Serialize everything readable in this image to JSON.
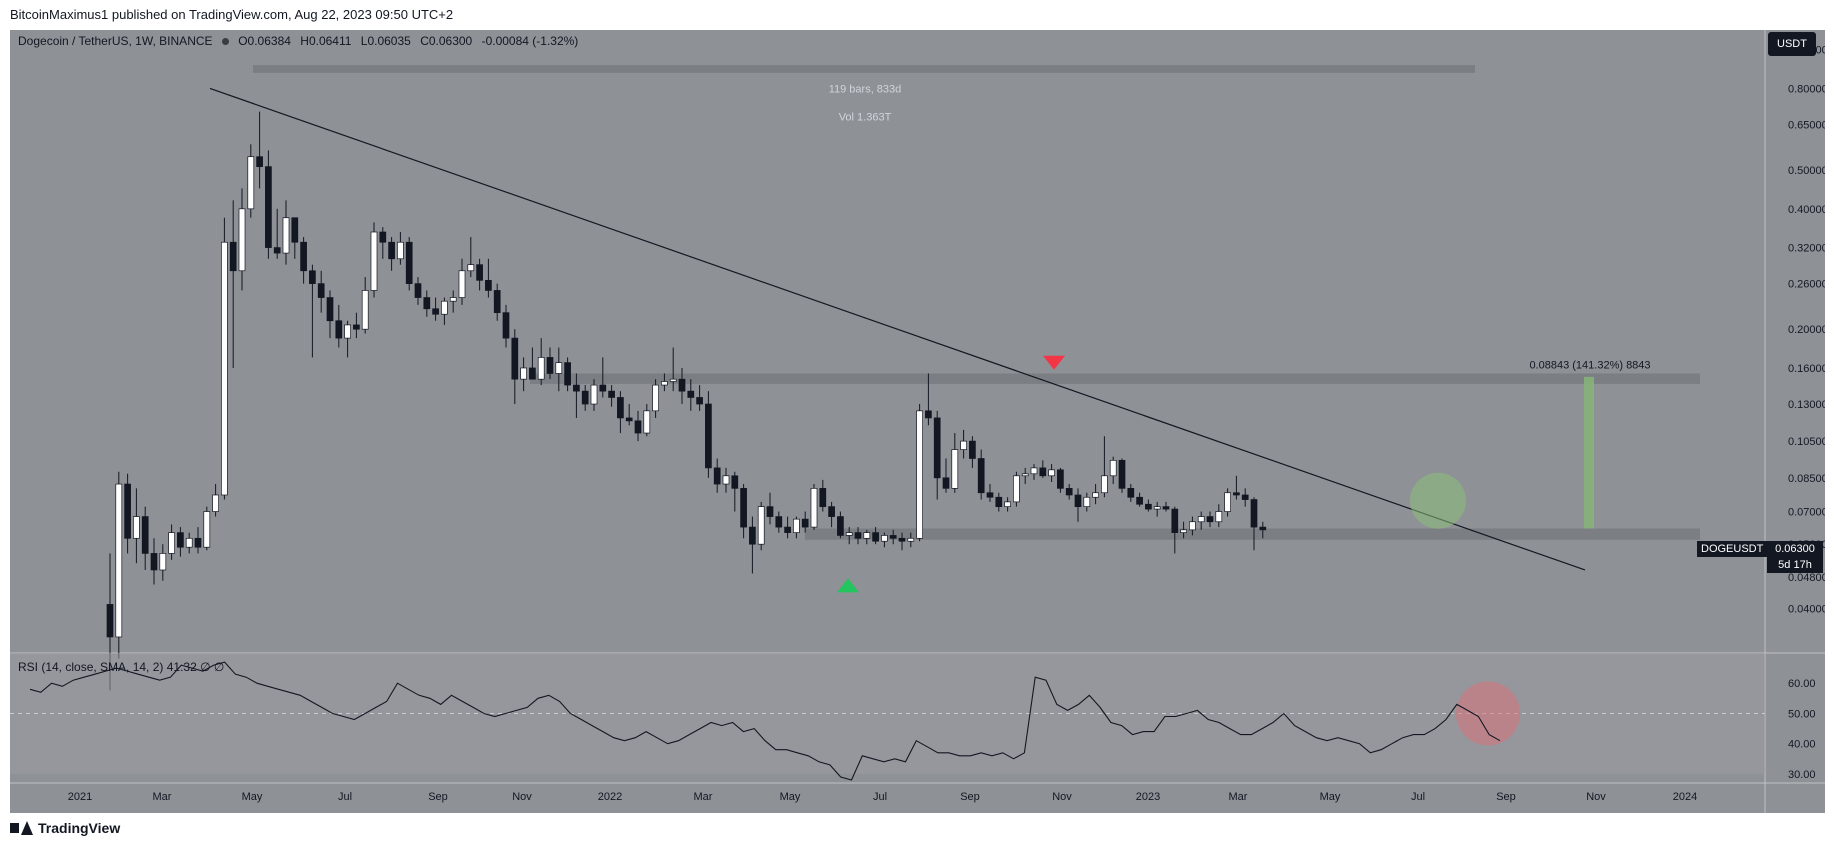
{
  "header": {
    "publisher": "BitcoinMaximus1 published on TradingView.com, Aug 22, 2023 09:50 UTC+2"
  },
  "symbol": {
    "name": "Dogecoin / TetherUS, 1W, BINANCE",
    "open": "O0.06384",
    "high": "H0.06411",
    "low": "L0.06035",
    "close": "C0.06300",
    "change": "-0.00084 (-1.32%)",
    "currency_button": "USDT"
  },
  "price_tag": {
    "ticker": "DOGEUSDT",
    "value": "0.06300",
    "countdown": "5d 17h"
  },
  "rsi": {
    "label": "RSI (14, close, SMA, 14, 2)",
    "value": "41.32",
    "extra": "∅  ∅"
  },
  "footer": {
    "brand": "TradingView"
  },
  "chart_data": {
    "type": "candlestick",
    "scale": "log",
    "ylim": [
      0.031,
      1.12
    ],
    "y_ticks": [
      "1.00000",
      "0.80000",
      "0.65000",
      "0.50000",
      "0.40000",
      "0.32000",
      "0.26000",
      "0.20000",
      "0.16000",
      "0.13000",
      "0.10500",
      "0.08500",
      "0.07000",
      "0.05800",
      "0.04800",
      "0.04000"
    ],
    "x_ticks": [
      "2021",
      "Mar",
      "May",
      "Jul",
      "Sep",
      "Nov",
      "2022",
      "Mar",
      "May",
      "Jul",
      "Sep",
      "Nov",
      "2023",
      "Mar",
      "May",
      "Jul",
      "Sep",
      "Nov",
      "2024"
    ],
    "candles": [
      {
        "o": 0.041,
        "h": 0.055,
        "l": 0.025,
        "c": 0.034
      },
      {
        "o": 0.034,
        "h": 0.088,
        "l": 0.03,
        "c": 0.082
      },
      {
        "o": 0.082,
        "h": 0.087,
        "l": 0.055,
        "c": 0.06
      },
      {
        "o": 0.06,
        "h": 0.08,
        "l": 0.052,
        "c": 0.068
      },
      {
        "o": 0.068,
        "h": 0.072,
        "l": 0.05,
        "c": 0.055
      },
      {
        "o": 0.055,
        "h": 0.06,
        "l": 0.046,
        "c": 0.05
      },
      {
        "o": 0.05,
        "h": 0.058,
        "l": 0.047,
        "c": 0.055
      },
      {
        "o": 0.055,
        "h": 0.065,
        "l": 0.053,
        "c": 0.062
      },
      {
        "o": 0.062,
        "h": 0.064,
        "l": 0.054,
        "c": 0.057
      },
      {
        "o": 0.057,
        "h": 0.062,
        "l": 0.055,
        "c": 0.06
      },
      {
        "o": 0.06,
        "h": 0.064,
        "l": 0.055,
        "c": 0.057
      },
      {
        "o": 0.057,
        "h": 0.072,
        "l": 0.056,
        "c": 0.07
      },
      {
        "o": 0.07,
        "h": 0.082,
        "l": 0.068,
        "c": 0.077
      },
      {
        "o": 0.077,
        "h": 0.38,
        "l": 0.075,
        "c": 0.33
      },
      {
        "o": 0.33,
        "h": 0.42,
        "l": 0.16,
        "c": 0.28
      },
      {
        "o": 0.28,
        "h": 0.45,
        "l": 0.25,
        "c": 0.4
      },
      {
        "o": 0.4,
        "h": 0.58,
        "l": 0.38,
        "c": 0.54
      },
      {
        "o": 0.54,
        "h": 0.7,
        "l": 0.45,
        "c": 0.51
      },
      {
        "o": 0.51,
        "h": 0.56,
        "l": 0.3,
        "c": 0.32
      },
      {
        "o": 0.32,
        "h": 0.4,
        "l": 0.3,
        "c": 0.31
      },
      {
        "o": 0.31,
        "h": 0.42,
        "l": 0.29,
        "c": 0.38
      },
      {
        "o": 0.38,
        "h": 0.38,
        "l": 0.3,
        "c": 0.33
      },
      {
        "o": 0.33,
        "h": 0.34,
        "l": 0.26,
        "c": 0.28
      },
      {
        "o": 0.28,
        "h": 0.29,
        "l": 0.17,
        "c": 0.26
      },
      {
        "o": 0.26,
        "h": 0.28,
        "l": 0.22,
        "c": 0.24
      },
      {
        "o": 0.24,
        "h": 0.25,
        "l": 0.19,
        "c": 0.21
      },
      {
        "o": 0.21,
        "h": 0.23,
        "l": 0.18,
        "c": 0.19
      },
      {
        "o": 0.19,
        "h": 0.21,
        "l": 0.17,
        "c": 0.205
      },
      {
        "o": 0.205,
        "h": 0.22,
        "l": 0.19,
        "c": 0.2
      },
      {
        "o": 0.2,
        "h": 0.27,
        "l": 0.195,
        "c": 0.25
      },
      {
        "o": 0.25,
        "h": 0.37,
        "l": 0.24,
        "c": 0.35
      },
      {
        "o": 0.35,
        "h": 0.36,
        "l": 0.3,
        "c": 0.33
      },
      {
        "o": 0.33,
        "h": 0.34,
        "l": 0.28,
        "c": 0.3
      },
      {
        "o": 0.3,
        "h": 0.35,
        "l": 0.29,
        "c": 0.33
      },
      {
        "o": 0.33,
        "h": 0.34,
        "l": 0.25,
        "c": 0.26
      },
      {
        "o": 0.26,
        "h": 0.27,
        "l": 0.23,
        "c": 0.24
      },
      {
        "o": 0.24,
        "h": 0.25,
        "l": 0.215,
        "c": 0.225
      },
      {
        "o": 0.225,
        "h": 0.24,
        "l": 0.21,
        "c": 0.218
      },
      {
        "o": 0.218,
        "h": 0.24,
        "l": 0.205,
        "c": 0.235
      },
      {
        "o": 0.235,
        "h": 0.25,
        "l": 0.22,
        "c": 0.24
      },
      {
        "o": 0.24,
        "h": 0.3,
        "l": 0.23,
        "c": 0.28
      },
      {
        "o": 0.28,
        "h": 0.34,
        "l": 0.27,
        "c": 0.29
      },
      {
        "o": 0.29,
        "h": 0.3,
        "l": 0.25,
        "c": 0.265
      },
      {
        "o": 0.265,
        "h": 0.3,
        "l": 0.24,
        "c": 0.25
      },
      {
        "o": 0.25,
        "h": 0.26,
        "l": 0.21,
        "c": 0.22
      },
      {
        "o": 0.22,
        "h": 0.23,
        "l": 0.18,
        "c": 0.19
      },
      {
        "o": 0.19,
        "h": 0.2,
        "l": 0.13,
        "c": 0.15
      },
      {
        "o": 0.15,
        "h": 0.17,
        "l": 0.14,
        "c": 0.16
      },
      {
        "o": 0.16,
        "h": 0.18,
        "l": 0.15,
        "c": 0.15
      },
      {
        "o": 0.15,
        "h": 0.19,
        "l": 0.145,
        "c": 0.17
      },
      {
        "o": 0.17,
        "h": 0.18,
        "l": 0.15,
        "c": 0.155
      },
      {
        "o": 0.155,
        "h": 0.18,
        "l": 0.14,
        "c": 0.165
      },
      {
        "o": 0.165,
        "h": 0.17,
        "l": 0.14,
        "c": 0.145
      },
      {
        "o": 0.145,
        "h": 0.155,
        "l": 0.12,
        "c": 0.14
      },
      {
        "o": 0.14,
        "h": 0.145,
        "l": 0.125,
        "c": 0.13
      },
      {
        "o": 0.13,
        "h": 0.15,
        "l": 0.125,
        "c": 0.145
      },
      {
        "o": 0.145,
        "h": 0.17,
        "l": 0.135,
        "c": 0.14
      },
      {
        "o": 0.14,
        "h": 0.145,
        "l": 0.128,
        "c": 0.135
      },
      {
        "o": 0.135,
        "h": 0.14,
        "l": 0.11,
        "c": 0.12
      },
      {
        "o": 0.12,
        "h": 0.13,
        "l": 0.115,
        "c": 0.118
      },
      {
        "o": 0.118,
        "h": 0.125,
        "l": 0.105,
        "c": 0.11
      },
      {
        "o": 0.11,
        "h": 0.13,
        "l": 0.108,
        "c": 0.125
      },
      {
        "o": 0.125,
        "h": 0.15,
        "l": 0.12,
        "c": 0.145
      },
      {
        "o": 0.145,
        "h": 0.155,
        "l": 0.14,
        "c": 0.148
      },
      {
        "o": 0.148,
        "h": 0.18,
        "l": 0.14,
        "c": 0.15
      },
      {
        "o": 0.15,
        "h": 0.16,
        "l": 0.13,
        "c": 0.14
      },
      {
        "o": 0.14,
        "h": 0.15,
        "l": 0.125,
        "c": 0.135
      },
      {
        "o": 0.135,
        "h": 0.145,
        "l": 0.125,
        "c": 0.13
      },
      {
        "o": 0.13,
        "h": 0.14,
        "l": 0.085,
        "c": 0.09
      },
      {
        "o": 0.09,
        "h": 0.095,
        "l": 0.078,
        "c": 0.082
      },
      {
        "o": 0.082,
        "h": 0.09,
        "l": 0.078,
        "c": 0.086
      },
      {
        "o": 0.086,
        "h": 0.088,
        "l": 0.07,
        "c": 0.08
      },
      {
        "o": 0.08,
        "h": 0.082,
        "l": 0.06,
        "c": 0.064
      },
      {
        "o": 0.064,
        "h": 0.068,
        "l": 0.049,
        "c": 0.058
      },
      {
        "o": 0.058,
        "h": 0.074,
        "l": 0.056,
        "c": 0.072
      },
      {
        "o": 0.072,
        "h": 0.078,
        "l": 0.065,
        "c": 0.068
      },
      {
        "o": 0.068,
        "h": 0.07,
        "l": 0.062,
        "c": 0.064
      },
      {
        "o": 0.064,
        "h": 0.068,
        "l": 0.06,
        "c": 0.062
      },
      {
        "o": 0.062,
        "h": 0.068,
        "l": 0.06,
        "c": 0.067
      },
      {
        "o": 0.067,
        "h": 0.07,
        "l": 0.062,
        "c": 0.064
      },
      {
        "o": 0.064,
        "h": 0.082,
        "l": 0.063,
        "c": 0.08
      },
      {
        "o": 0.08,
        "h": 0.084,
        "l": 0.07,
        "c": 0.072
      },
      {
        "o": 0.072,
        "h": 0.074,
        "l": 0.064,
        "c": 0.068
      },
      {
        "o": 0.068,
        "h": 0.07,
        "l": 0.06,
        "c": 0.061
      },
      {
        "o": 0.061,
        "h": 0.064,
        "l": 0.058,
        "c": 0.062
      },
      {
        "o": 0.062,
        "h": 0.064,
        "l": 0.058,
        "c": 0.06
      },
      {
        "o": 0.06,
        "h": 0.063,
        "l": 0.058,
        "c": 0.062
      },
      {
        "o": 0.062,
        "h": 0.064,
        "l": 0.058,
        "c": 0.059
      },
      {
        "o": 0.059,
        "h": 0.062,
        "l": 0.057,
        "c": 0.061
      },
      {
        "o": 0.061,
        "h": 0.063,
        "l": 0.058,
        "c": 0.06
      },
      {
        "o": 0.06,
        "h": 0.062,
        "l": 0.056,
        "c": 0.059
      },
      {
        "o": 0.059,
        "h": 0.062,
        "l": 0.057,
        "c": 0.06
      },
      {
        "o": 0.06,
        "h": 0.13,
        "l": 0.059,
        "c": 0.125
      },
      {
        "o": 0.125,
        "h": 0.155,
        "l": 0.115,
        "c": 0.12
      },
      {
        "o": 0.12,
        "h": 0.125,
        "l": 0.075,
        "c": 0.085
      },
      {
        "o": 0.085,
        "h": 0.095,
        "l": 0.078,
        "c": 0.08
      },
      {
        "o": 0.08,
        "h": 0.11,
        "l": 0.078,
        "c": 0.1
      },
      {
        "o": 0.1,
        "h": 0.112,
        "l": 0.095,
        "c": 0.105
      },
      {
        "o": 0.105,
        "h": 0.108,
        "l": 0.09,
        "c": 0.095
      },
      {
        "o": 0.095,
        "h": 0.1,
        "l": 0.075,
        "c": 0.078
      },
      {
        "o": 0.078,
        "h": 0.082,
        "l": 0.074,
        "c": 0.076
      },
      {
        "o": 0.076,
        "h": 0.078,
        "l": 0.07,
        "c": 0.072
      },
      {
        "o": 0.072,
        "h": 0.076,
        "l": 0.07,
        "c": 0.074
      },
      {
        "o": 0.074,
        "h": 0.088,
        "l": 0.072,
        "c": 0.086
      },
      {
        "o": 0.086,
        "h": 0.09,
        "l": 0.082,
        "c": 0.087
      },
      {
        "o": 0.087,
        "h": 0.092,
        "l": 0.084,
        "c": 0.09
      },
      {
        "o": 0.09,
        "h": 0.094,
        "l": 0.085,
        "c": 0.086
      },
      {
        "o": 0.086,
        "h": 0.092,
        "l": 0.083,
        "c": 0.089
      },
      {
        "o": 0.089,
        "h": 0.09,
        "l": 0.078,
        "c": 0.08
      },
      {
        "o": 0.08,
        "h": 0.082,
        "l": 0.075,
        "c": 0.077
      },
      {
        "o": 0.077,
        "h": 0.08,
        "l": 0.066,
        "c": 0.072
      },
      {
        "o": 0.072,
        "h": 0.078,
        "l": 0.07,
        "c": 0.076
      },
      {
        "o": 0.076,
        "h": 0.082,
        "l": 0.073,
        "c": 0.078
      },
      {
        "o": 0.078,
        "h": 0.108,
        "l": 0.076,
        "c": 0.086
      },
      {
        "o": 0.086,
        "h": 0.096,
        "l": 0.082,
        "c": 0.094
      },
      {
        "o": 0.094,
        "h": 0.095,
        "l": 0.078,
        "c": 0.08
      },
      {
        "o": 0.08,
        "h": 0.082,
        "l": 0.074,
        "c": 0.076
      },
      {
        "o": 0.076,
        "h": 0.078,
        "l": 0.072,
        "c": 0.073
      },
      {
        "o": 0.073,
        "h": 0.075,
        "l": 0.07,
        "c": 0.071
      },
      {
        "o": 0.071,
        "h": 0.074,
        "l": 0.068,
        "c": 0.072
      },
      {
        "o": 0.072,
        "h": 0.074,
        "l": 0.07,
        "c": 0.071
      },
      {
        "o": 0.071,
        "h": 0.072,
        "l": 0.055,
        "c": 0.062
      },
      {
        "o": 0.062,
        "h": 0.066,
        "l": 0.06,
        "c": 0.063
      },
      {
        "o": 0.063,
        "h": 0.068,
        "l": 0.061,
        "c": 0.066
      },
      {
        "o": 0.066,
        "h": 0.07,
        "l": 0.063,
        "c": 0.068
      },
      {
        "o": 0.068,
        "h": 0.07,
        "l": 0.064,
        "c": 0.066
      },
      {
        "o": 0.066,
        "h": 0.073,
        "l": 0.064,
        "c": 0.07
      },
      {
        "o": 0.07,
        "h": 0.08,
        "l": 0.068,
        "c": 0.078
      },
      {
        "o": 0.078,
        "h": 0.086,
        "l": 0.075,
        "c": 0.077
      },
      {
        "o": 0.077,
        "h": 0.08,
        "l": 0.072,
        "c": 0.075
      },
      {
        "o": 0.075,
        "h": 0.076,
        "l": 0.056,
        "c": 0.064
      },
      {
        "o": 0.064,
        "h": 0.066,
        "l": 0.06,
        "c": 0.063
      }
    ],
    "annotations": {
      "measure_label_1": "119 bars, 833d",
      "measure_label_2": "Vol 1.363T",
      "target_label": "0.08843 (141.32%) 8843",
      "support_zone": [
        0.0595,
        0.0635
      ],
      "resistance_zone": [
        0.146,
        0.155
      ],
      "top_zone": [
        0.875,
        0.915
      ],
      "trendline": [
        [
          0.8,
          0
        ],
        [
          0.05,
          1
        ]
      ],
      "target_bar": [
        0.0635,
        0.152
      ]
    },
    "rsi": {
      "ylim": [
        27,
        70
      ],
      "ticks": [
        "60.00",
        "50.00",
        "40.00",
        "30.00"
      ],
      "values": [
        58,
        57,
        60,
        59,
        61,
        62,
        63,
        64,
        65,
        64,
        63,
        62,
        61,
        62,
        66,
        65,
        64,
        66,
        67,
        63,
        62,
        60,
        59,
        58,
        57,
        56,
        54,
        52,
        50,
        49,
        48,
        50,
        52,
        54,
        60,
        58,
        56,
        55,
        53,
        56,
        54,
        52,
        50,
        49,
        50,
        51,
        52,
        55,
        56,
        54,
        50,
        48,
        46,
        44,
        42,
        41,
        42,
        44,
        42,
        40,
        41,
        43,
        45,
        47,
        46,
        47,
        44,
        45,
        41,
        38,
        38,
        37,
        36,
        34,
        33,
        29,
        28,
        36,
        35,
        34,
        35,
        34,
        41,
        39,
        37,
        37,
        36,
        36,
        37,
        36,
        37,
        35,
        37,
        62,
        61,
        53,
        51,
        53,
        56,
        52,
        47,
        46,
        43,
        44,
        44,
        49,
        49,
        50,
        51,
        48,
        47,
        45,
        43,
        43,
        45,
        47,
        50,
        46,
        44,
        42,
        41,
        42,
        41,
        40,
        37,
        38,
        40,
        42,
        43,
        43,
        45,
        48,
        53,
        51,
        49,
        43,
        41
      ]
    }
  }
}
